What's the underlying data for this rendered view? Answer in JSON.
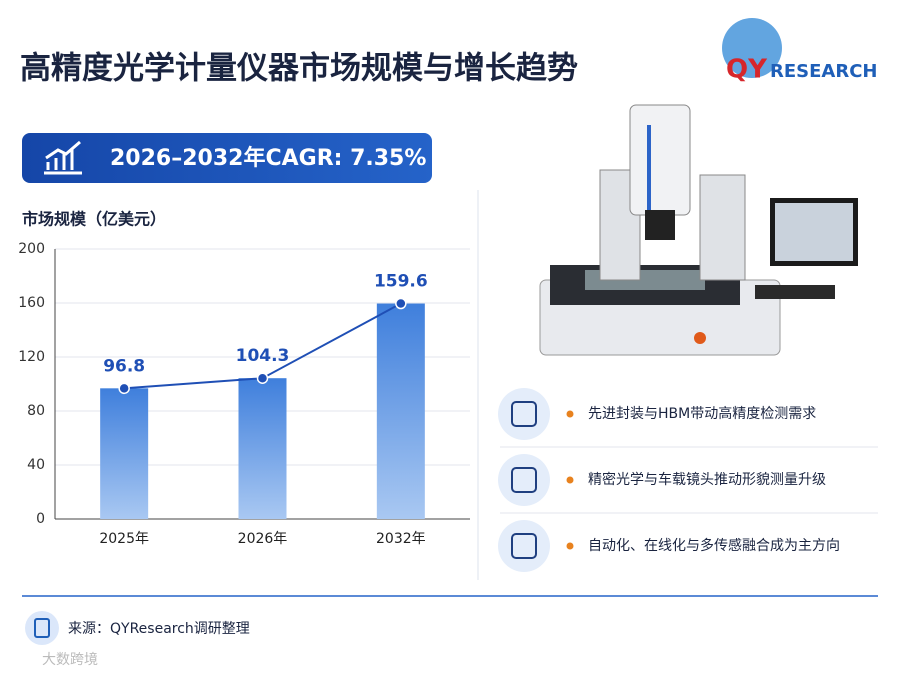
{
  "header": {
    "title": "高精度光学计量仪器市场规模与增长趋势",
    "logo_q": "QY",
    "logo_r": "RESEARCH"
  },
  "cagr": "2026–2032年CAGR: 7.35%",
  "chart_data": {
    "type": "bar",
    "y_label": "市场规模（亿美元）",
    "categories": [
      "2025年",
      "2026年",
      "2032年"
    ],
    "values": [
      96.8,
      104.3,
      159.6
    ],
    "color": "#3d7ad6",
    "line_color": "#1f4fb5",
    "line": true,
    "ylim": [
      0,
      200
    ],
    "yticks": [
      0,
      40,
      80,
      120,
      160,
      200
    ],
    "grid": true
  },
  "features": [
    "先进封装与HBM带动高精度检测需求",
    "精密光学与车载镜头推动形貌测量升级",
    "自动化、在线化与多传感融合成为主方向"
  ],
  "footer": {
    "source": "来源：QYResearch调研整理",
    "watermark": "大数跨境"
  }
}
